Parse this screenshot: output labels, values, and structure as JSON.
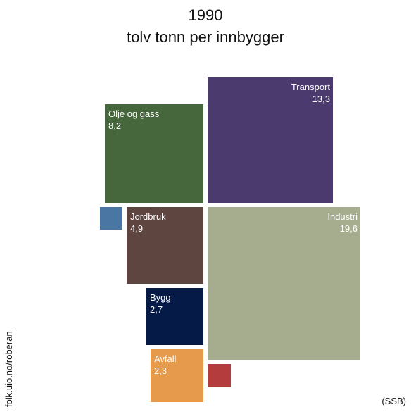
{
  "chart_data": {
    "type": "treemap",
    "title": "1990",
    "subtitle": "tolv tonn per innbygger",
    "source": "(SSB)",
    "credit": "folk.uio.no/roberan",
    "sectors": [
      {
        "name": "Transport",
        "value": "13,3",
        "color": "#4b3a6e"
      },
      {
        "name": "Olje og gass",
        "value": "8,2",
        "color": "#46663c"
      },
      {
        "name": "Industri",
        "value": "19,6",
        "color": "#a6ad8f"
      },
      {
        "name": "Jordbruk",
        "value": "4,9",
        "color": "#5f4540"
      },
      {
        "name": "Bygg",
        "value": "2,7",
        "color": "#051a47"
      },
      {
        "name": "Avfall",
        "value": "2,3",
        "color": "#e69a4b"
      },
      {
        "name": "",
        "value": "",
        "color": "#4a76a3"
      },
      {
        "name": "",
        "value": "",
        "color": "#b43c3c"
      }
    ]
  }
}
